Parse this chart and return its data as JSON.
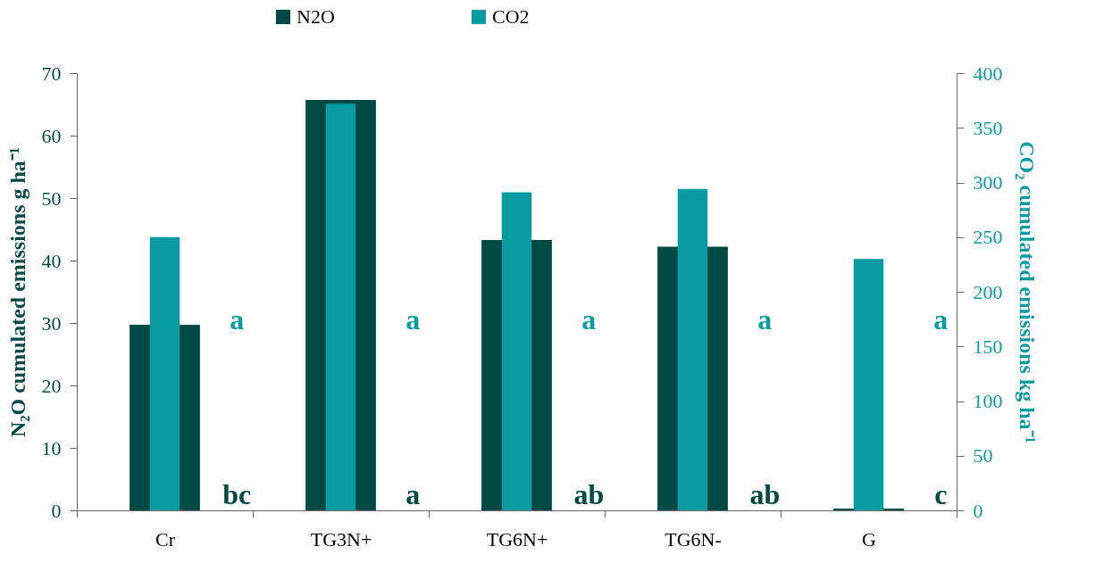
{
  "chart_data": {
    "type": "bar",
    "categories": [
      "Cr",
      "TG3N+",
      "TG6N+",
      "TG6N-",
      "G"
    ],
    "series": [
      {
        "name": "N2O",
        "color": "#004a45",
        "values": [
          29.7,
          65.7,
          43.3,
          42.2,
          0.3
        ]
      },
      {
        "name": "CO2",
        "color": "#089ca2",
        "axis": "y2",
        "values": [
          250,
          372,
          291,
          294,
          230
        ]
      }
    ],
    "ylabel": "N₂O cumulated emissions    g ha⁻¹",
    "y2label": "CO₂ cumulated emissions    kg ha⁻¹",
    "ylim": [
      0,
      70
    ],
    "yticks": [
      0,
      10,
      20,
      30,
      40,
      50,
      60,
      70
    ],
    "y2lim": [
      0,
      400
    ],
    "y2ticks": [
      0,
      50,
      100,
      150,
      200,
      250,
      300,
      350,
      400
    ],
    "legend": "top",
    "grid": false,
    "annotations": [
      "a",
      "a",
      "a",
      "a",
      "a",
      "bc",
      "a",
      "ab",
      "ab",
      "c"
    ]
  }
}
